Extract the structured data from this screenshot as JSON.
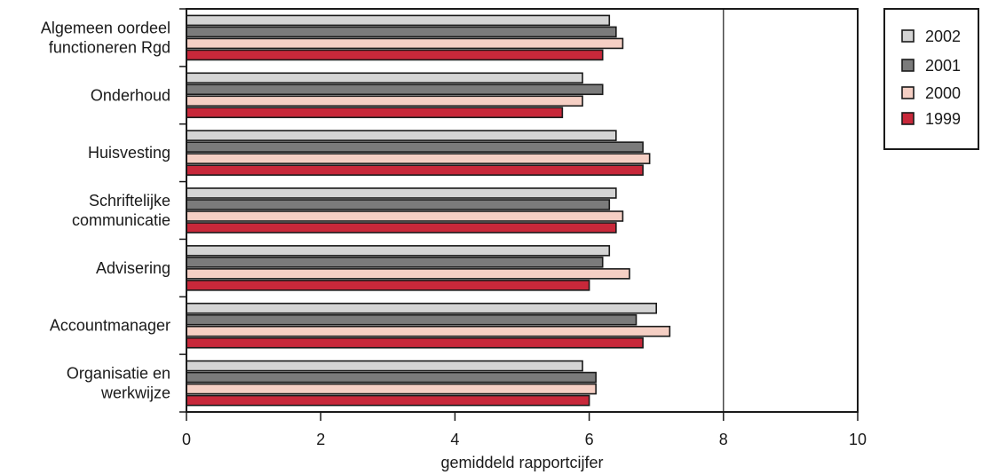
{
  "chart_data": {
    "type": "bar",
    "orientation": "horizontal",
    "categories": [
      [
        "Algemeen oordeel",
        "functioneren Rgd"
      ],
      [
        "Onderhoud"
      ],
      [
        "Huisvesting"
      ],
      [
        "Schriftelijke",
        "communicatie"
      ],
      [
        "Advisering"
      ],
      [
        "Accountmanager"
      ],
      [
        "Organisatie en",
        "werkwijze"
      ]
    ],
    "series": [
      {
        "name": "2002",
        "color": "#d4d4d4",
        "values": [
          6.3,
          5.9,
          6.4,
          6.4,
          6.3,
          7.0,
          5.9
        ]
      },
      {
        "name": "2001",
        "color": "#7b7b7b",
        "values": [
          6.4,
          6.2,
          6.8,
          6.3,
          6.2,
          6.7,
          6.1
        ]
      },
      {
        "name": "2000",
        "color": "#f5cfc4",
        "values": [
          6.5,
          5.9,
          6.9,
          6.5,
          6.6,
          7.2,
          6.1
        ]
      },
      {
        "name": "1999",
        "color": "#c8283a",
        "values": [
          6.2,
          5.6,
          6.8,
          6.4,
          6.0,
          6.8,
          6.0
        ]
      }
    ],
    "xlim": [
      0,
      10
    ],
    "xticks": [
      "0",
      "2",
      "4",
      "6",
      "8",
      "10"
    ],
    "xlabel": "gemiddeld rapportcijfer",
    "ylabel": "",
    "title": "",
    "grid": "vertical at 8",
    "legend": "top-right"
  }
}
